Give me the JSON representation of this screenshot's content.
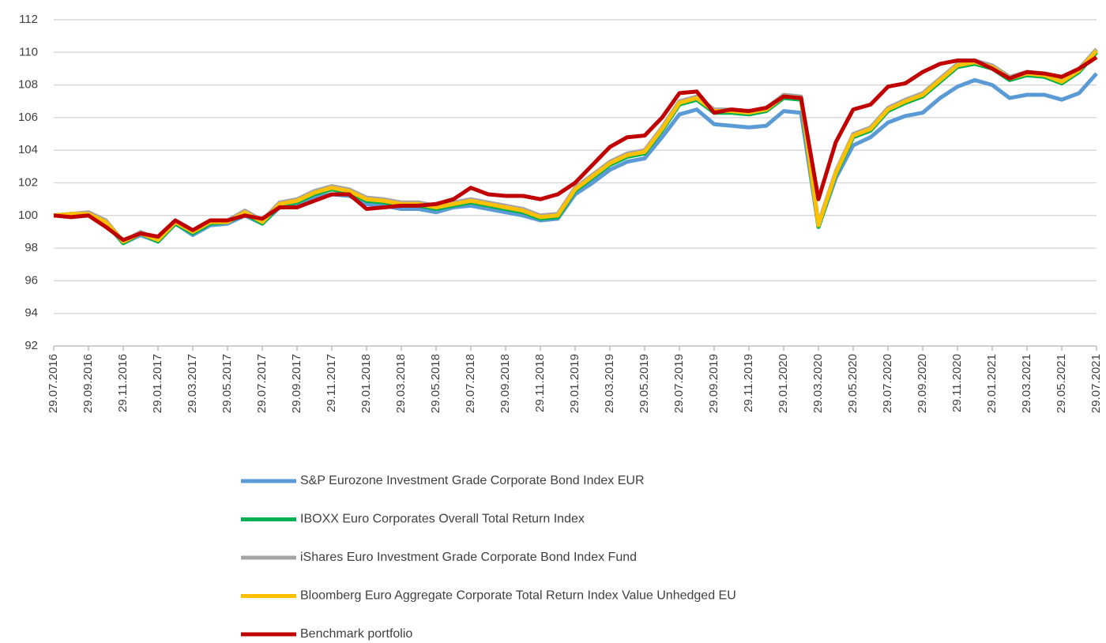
{
  "chart_data": {
    "type": "line",
    "categories": [
      "29.07.2016",
      null,
      "29.09.2016",
      null,
      "29.11.2016",
      null,
      "29.01.2017",
      null,
      "29.03.2017",
      null,
      "29.05.2017",
      null,
      "29.07.2017",
      null,
      "29.09.2017",
      null,
      "29.11.2017",
      null,
      "29.01.2018",
      null,
      "29.03.2018",
      null,
      "29.05.2018",
      null,
      "29.07.2018",
      null,
      "29.09.2018",
      null,
      "29.11.2018",
      null,
      "29.01.2019",
      null,
      "29.03.2019",
      null,
      "29.05.2019",
      null,
      "29.07.2019",
      null,
      "29.09.2019",
      null,
      "29.11.2019",
      null,
      "29.01.2020",
      null,
      "29.03.2020",
      null,
      "29.05.2020",
      null,
      "29.07.2020",
      null,
      "29.09.2020",
      null,
      "29.11.2020",
      null,
      "29.01.2021",
      null,
      "29.03.2021",
      null,
      "29.05.2021",
      null,
      "29.07.2021"
    ],
    "series": [
      {
        "name": "S&P Eurozone Investment Grade Corporate Bond Index EUR",
        "color": "#5b9bd5",
        "values": [
          100,
          100.1,
          100,
          99.5,
          98.3,
          98.8,
          98.4,
          99.5,
          98.8,
          99.4,
          99.5,
          100.0,
          99.5,
          100.5,
          100.7,
          101.1,
          101.3,
          101.2,
          100.7,
          100.6,
          100.4,
          100.4,
          100.2,
          100.5,
          100.6,
          100.4,
          100.2,
          100.0,
          99.7,
          99.8,
          101.3,
          102.0,
          102.8,
          103.3,
          103.5,
          104.8,
          106.2,
          106.5,
          105.6,
          105.5,
          105.4,
          105.5,
          106.4,
          106.3,
          99.3,
          102.3,
          104.3,
          104.8,
          105.7,
          106.1,
          106.3,
          107.2,
          107.9,
          108.3,
          108.0,
          107.2,
          107.4,
          107.4,
          107.1,
          107.5,
          108.7
        ]
      },
      {
        "name": "IBOXX Euro Corporates Overall Total Return Index",
        "color": "#00b050",
        "values": [
          100,
          100.1,
          100.1,
          99.6,
          98.3,
          98.9,
          98.4,
          99.5,
          98.9,
          99.5,
          99.6,
          100.1,
          99.5,
          100.6,
          100.8,
          101.3,
          101.6,
          101.4,
          100.9,
          100.8,
          100.6,
          100.6,
          100.4,
          100.6,
          100.8,
          100.6,
          100.4,
          100.2,
          99.8,
          99.9,
          101.5,
          102.3,
          103.1,
          103.6,
          103.8,
          105.2,
          106.8,
          107.1,
          106.3,
          106.3,
          106.2,
          106.4,
          107.2,
          107.1,
          99.3,
          102.5,
          104.8,
          105.2,
          106.4,
          106.9,
          107.3,
          108.2,
          109.1,
          109.3,
          109.0,
          108.3,
          108.6,
          108.5,
          108.1,
          108.8,
          110.0
        ]
      },
      {
        "name": "iShares Euro Investment Grade Corporate Bond Index Fund",
        "color": "#a5a5a5",
        "values": [
          100,
          100.1,
          100.2,
          99.7,
          98.4,
          99.0,
          98.5,
          99.6,
          99.0,
          99.6,
          99.7,
          100.3,
          99.7,
          100.8,
          101.0,
          101.5,
          101.8,
          101.6,
          101.1,
          101.0,
          100.8,
          100.8,
          100.6,
          100.8,
          101.0,
          100.8,
          100.6,
          100.4,
          100.0,
          100.1,
          101.7,
          102.5,
          103.3,
          103.8,
          104.0,
          105.4,
          107.0,
          107.3,
          106.5,
          106.5,
          106.4,
          106.6,
          107.4,
          107.3,
          99.5,
          102.7,
          105.0,
          105.4,
          106.6,
          107.1,
          107.5,
          108.4,
          109.3,
          109.5,
          109.2,
          108.5,
          108.8,
          108.7,
          108.3,
          109.0,
          110.2
        ]
      },
      {
        "name": "Bloomberg Euro Aggregate Corporate Total Return Index Value Unhedged EU",
        "color": "#ffc000",
        "values": [
          100,
          100.1,
          100.1,
          99.6,
          98.4,
          98.9,
          98.5,
          99.6,
          99.0,
          99.6,
          99.6,
          100.2,
          99.6,
          100.7,
          100.9,
          101.4,
          101.7,
          101.5,
          101.0,
          100.9,
          100.7,
          100.7,
          100.5,
          100.7,
          100.9,
          100.7,
          100.5,
          100.3,
          99.9,
          100.0,
          101.6,
          102.4,
          103.2,
          103.7,
          103.9,
          105.3,
          106.9,
          107.2,
          106.4,
          106.4,
          106.3,
          106.5,
          107.3,
          107.2,
          99.4,
          102.6,
          104.9,
          105.3,
          106.5,
          107.0,
          107.4,
          108.3,
          109.2,
          109.4,
          109.1,
          108.4,
          108.7,
          108.6,
          108.2,
          108.9,
          110.1
        ]
      },
      {
        "name": "Benchmark portfolio",
        "color": "#c00000",
        "values": [
          100,
          99.9,
          100,
          99.3,
          98.5,
          98.9,
          98.7,
          99.7,
          99.1,
          99.7,
          99.7,
          100,
          99.8,
          100.5,
          100.5,
          100.9,
          101.3,
          101.3,
          100.4,
          100.5,
          100.6,
          100.6,
          100.7,
          101.0,
          101.7,
          101.3,
          101.2,
          101.2,
          101.0,
          101.3,
          102.0,
          103.1,
          104.2,
          104.8,
          104.9,
          106.0,
          107.5,
          107.6,
          106.3,
          106.5,
          106.4,
          106.6,
          107.3,
          107.2,
          101.0,
          104.5,
          106.5,
          106.8,
          107.9,
          108.1,
          108.8,
          109.3,
          109.5,
          109.5,
          109.0,
          108.4,
          108.8,
          108.7,
          108.5,
          109.0,
          109.7
        ]
      }
    ],
    "ylim": [
      92,
      112
    ],
    "yticks": [
      92,
      94,
      96,
      98,
      100,
      102,
      104,
      106,
      108,
      110,
      112
    ],
    "grid": true,
    "legend": "bottom"
  }
}
